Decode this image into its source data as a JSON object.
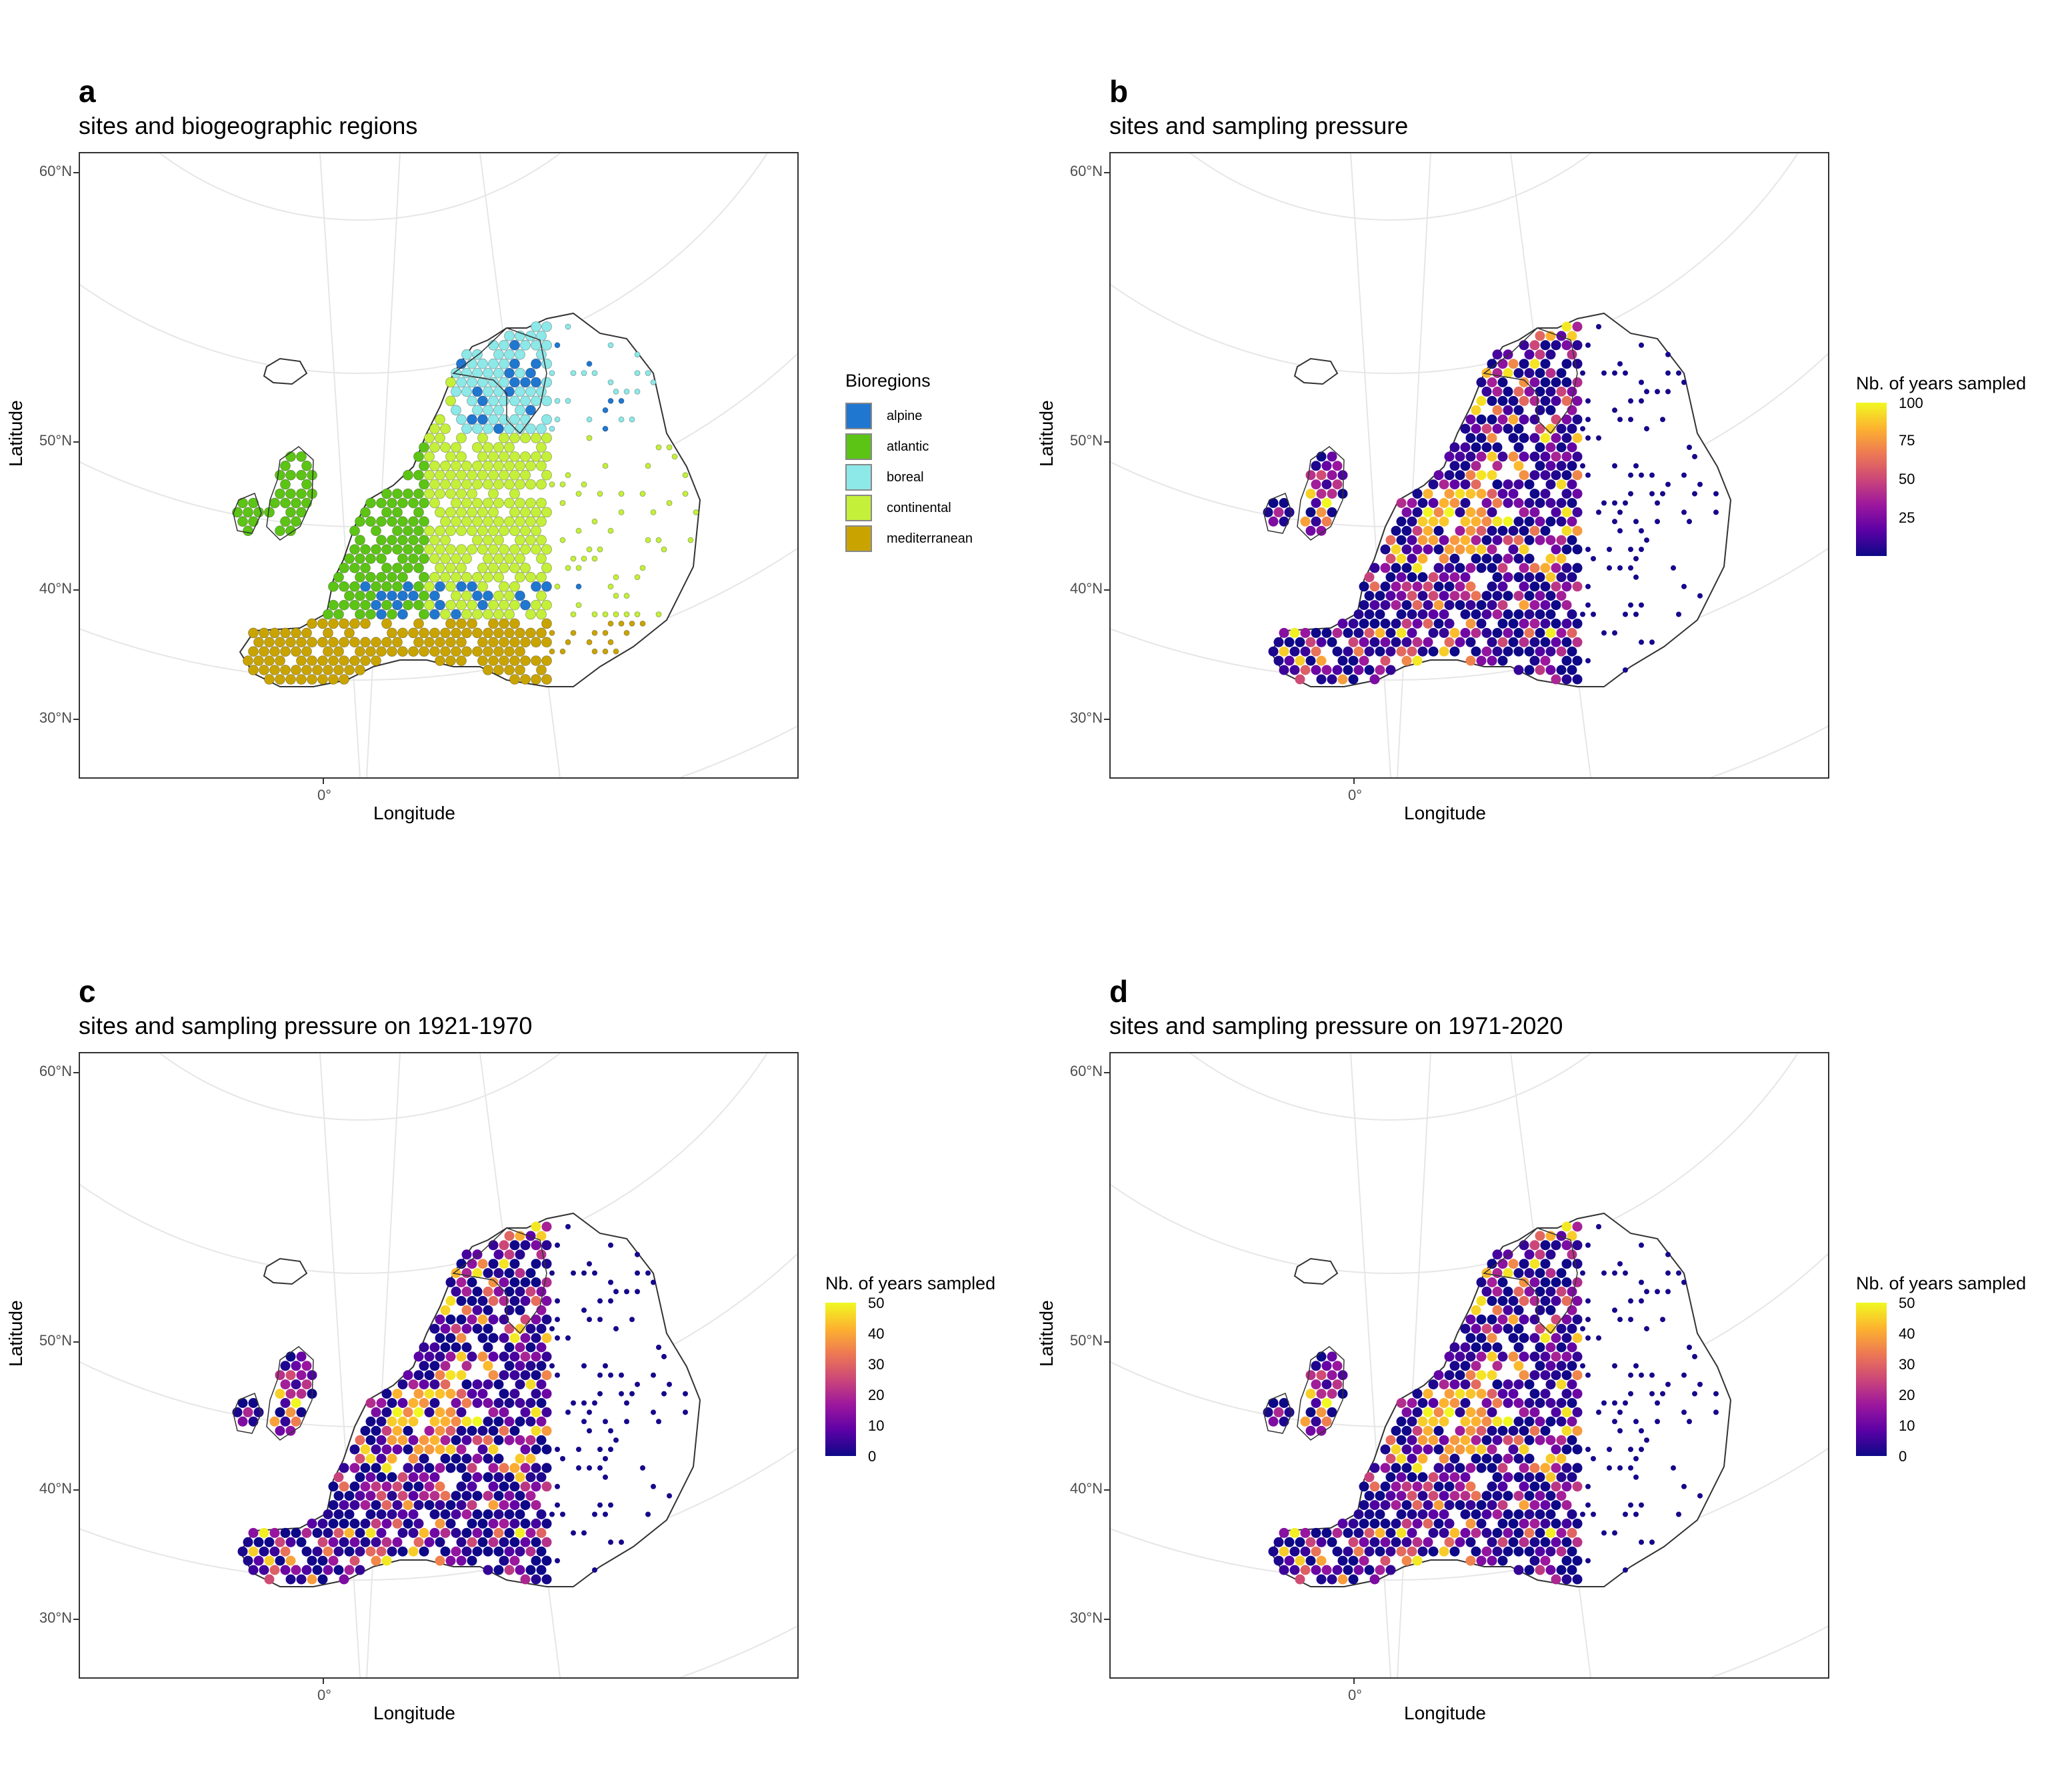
{
  "panels": [
    {
      "tag": "a",
      "subtitle": "sites and biogeographic regions",
      "xlabel": "Longitude",
      "ylabel": "Latitude",
      "lat_ticks": [
        "60°N",
        "50°N",
        "40°N",
        "30°N"
      ],
      "lon_ticks": [
        "0°"
      ],
      "legend": {
        "type": "categorical",
        "title": "Bioregions",
        "items": [
          {
            "label": "alpine",
            "color": "#1f77d0"
          },
          {
            "label": "atlantic",
            "color": "#5cc414"
          },
          {
            "label": "boreal",
            "color": "#8de8e8"
          },
          {
            "label": "continental",
            "color": "#c4f03a"
          },
          {
            "label": "mediterranean",
            "color": "#c9a400"
          }
        ]
      }
    },
    {
      "tag": "b",
      "subtitle": "sites and sampling pressure",
      "xlabel": "Longitude",
      "ylabel": "Latitude",
      "lat_ticks": [
        "60°N",
        "50°N",
        "40°N",
        "30°N"
      ],
      "lon_ticks": [
        "0°"
      ],
      "legend": {
        "type": "continuous",
        "title": "Nb. of years sampled",
        "max": 100,
        "ticks": [
          "100",
          "75",
          "50",
          "25"
        ]
      }
    },
    {
      "tag": "c",
      "subtitle": "sites and sampling pressure on 1921-1970",
      "xlabel": "Longitude",
      "ylabel": "Latitude",
      "lat_ticks": [
        "60°N",
        "50°N",
        "40°N",
        "30°N"
      ],
      "lon_ticks": [
        "0°"
      ],
      "legend": {
        "type": "continuous",
        "title": "Nb. of years sampled",
        "max": 50,
        "ticks": [
          "50",
          "40",
          "30",
          "20",
          "10",
          "0"
        ]
      }
    },
    {
      "tag": "d",
      "subtitle": "sites and sampling pressure on 1971-2020",
      "xlabel": "Longitude",
      "ylabel": "Latitude",
      "lat_ticks": [
        "60°N",
        "50°N",
        "40°N",
        "30°N"
      ],
      "lon_ticks": [
        "0°"
      ],
      "legend": {
        "type": "continuous",
        "title": "Nb. of years sampled",
        "max": 50,
        "ticks": [
          "50",
          "40",
          "30",
          "20",
          "10",
          "0"
        ]
      }
    }
  ],
  "colors": {
    "gradient": [
      "#0d0887",
      "#5c01a6",
      "#9c179e",
      "#cc4778",
      "#ed7953",
      "#fdb32f",
      "#f0f921"
    ],
    "coast": "#333333",
    "graticule": "#e6e6e6"
  }
}
